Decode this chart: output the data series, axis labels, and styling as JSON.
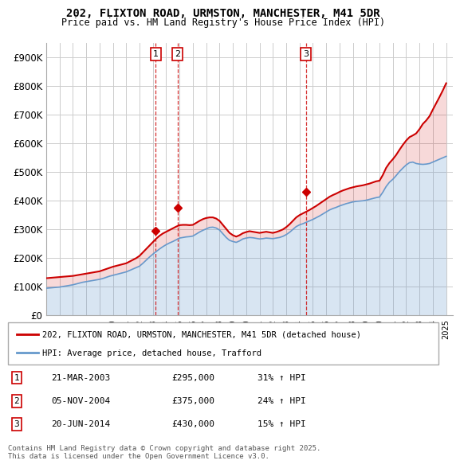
{
  "title1": "202, FLIXTON ROAD, URMSTON, MANCHESTER, M41 5DR",
  "title2": "Price paid vs. HM Land Registry's House Price Index (HPI)",
  "xlabel": "",
  "ylabel": "",
  "ylim": [
    0,
    950000
  ],
  "yticks": [
    0,
    100000,
    200000,
    300000,
    400000,
    500000,
    600000,
    700000,
    800000,
    900000
  ],
  "ytick_labels": [
    "£0",
    "£100K",
    "£200K",
    "£300K",
    "£400K",
    "£500K",
    "£600K",
    "£700K",
    "£800K",
    "£900K"
  ],
  "xlim_start": 1995.0,
  "xlim_end": 2025.5,
  "transactions": [
    {
      "num": 1,
      "date": "21-MAR-2003",
      "price": 295000,
      "year": 2003.22,
      "pct": "31%",
      "dir": "↑"
    },
    {
      "num": 2,
      "date": "05-NOV-2004",
      "price": 375000,
      "year": 2004.84,
      "pct": "24%",
      "dir": "↑"
    },
    {
      "num": 3,
      "date": "20-JUN-2014",
      "price": 430000,
      "year": 2014.47,
      "pct": "15%",
      "dir": "↑"
    }
  ],
  "line_color_red": "#cc0000",
  "line_color_blue": "#6699cc",
  "vline_color": "#cc0000",
  "background_color": "#ffffff",
  "grid_color": "#cccccc",
  "legend_label_red": "202, FLIXTON ROAD, URMSTON, MANCHESTER, M41 5DR (detached house)",
  "legend_label_blue": "HPI: Average price, detached house, Trafford",
  "footnote": "Contains HM Land Registry data © Crown copyright and database right 2025.\nThis data is licensed under the Open Government Licence v3.0.",
  "hpi_years": [
    1995,
    1995.25,
    1995.5,
    1995.75,
    1996,
    1996.25,
    1996.5,
    1996.75,
    1997,
    1997.25,
    1997.5,
    1997.75,
    1998,
    1998.25,
    1998.5,
    1998.75,
    1999,
    1999.25,
    1999.5,
    1999.75,
    2000,
    2000.25,
    2000.5,
    2000.75,
    2001,
    2001.25,
    2001.5,
    2001.75,
    2002,
    2002.25,
    2002.5,
    2002.75,
    2003,
    2003.25,
    2003.5,
    2003.75,
    2004,
    2004.25,
    2004.5,
    2004.75,
    2005,
    2005.25,
    2005.5,
    2005.75,
    2006,
    2006.25,
    2006.5,
    2006.75,
    2007,
    2007.25,
    2007.5,
    2007.75,
    2008,
    2008.25,
    2008.5,
    2008.75,
    2009,
    2009.25,
    2009.5,
    2009.75,
    2010,
    2010.25,
    2010.5,
    2010.75,
    2011,
    2011.25,
    2011.5,
    2011.75,
    2012,
    2012.25,
    2012.5,
    2012.75,
    2013,
    2013.25,
    2013.5,
    2013.75,
    2014,
    2014.25,
    2014.5,
    2014.75,
    2015,
    2015.25,
    2015.5,
    2015.75,
    2016,
    2016.25,
    2016.5,
    2016.75,
    2017,
    2017.25,
    2017.5,
    2017.75,
    2018,
    2018.25,
    2018.5,
    2018.75,
    2019,
    2019.25,
    2019.5,
    2019.75,
    2020,
    2020.25,
    2020.5,
    2020.75,
    2021,
    2021.25,
    2021.5,
    2021.75,
    2022,
    2022.25,
    2022.5,
    2022.75,
    2023,
    2023.25,
    2023.5,
    2023.75,
    2024,
    2024.25,
    2024.5,
    2024.75,
    2025
  ],
  "hpi_values": [
    95000,
    96000,
    97000,
    98000,
    99000,
    101000,
    103000,
    105000,
    107000,
    110000,
    113000,
    116000,
    118000,
    120000,
    122000,
    124000,
    126000,
    129000,
    133000,
    137000,
    140000,
    143000,
    146000,
    149000,
    152000,
    157000,
    162000,
    167000,
    172000,
    182000,
    193000,
    204000,
    214000,
    223000,
    232000,
    240000,
    247000,
    253000,
    258000,
    264000,
    270000,
    272000,
    274000,
    275000,
    277000,
    284000,
    291000,
    297000,
    302000,
    307000,
    308000,
    305000,
    298000,
    285000,
    272000,
    262000,
    258000,
    255000,
    260000,
    267000,
    270000,
    272000,
    271000,
    269000,
    267000,
    268000,
    270000,
    269000,
    268000,
    270000,
    272000,
    276000,
    282000,
    290000,
    300000,
    310000,
    316000,
    320000,
    325000,
    330000,
    335000,
    341000,
    347000,
    354000,
    361000,
    368000,
    373000,
    377000,
    382000,
    386000,
    390000,
    393000,
    396000,
    398000,
    399000,
    400000,
    402000,
    405000,
    408000,
    411000,
    413000,
    430000,
    450000,
    465000,
    475000,
    488000,
    502000,
    514000,
    525000,
    533000,
    535000,
    530000,
    528000,
    527000,
    528000,
    530000,
    535000,
    540000,
    545000,
    550000,
    555000
  ],
  "red_years": [
    1995,
    1995.25,
    1995.5,
    1995.75,
    1996,
    1996.25,
    1996.5,
    1996.75,
    1997,
    1997.25,
    1997.5,
    1997.75,
    1998,
    1998.25,
    1998.5,
    1998.75,
    1999,
    1999.25,
    1999.5,
    1999.75,
    2000,
    2000.25,
    2000.5,
    2000.75,
    2001,
    2001.25,
    2001.5,
    2001.75,
    2002,
    2002.25,
    2002.5,
    2002.75,
    2003,
    2003.25,
    2003.5,
    2003.75,
    2004,
    2004.25,
    2004.5,
    2004.75,
    2005,
    2005.25,
    2005.5,
    2005.75,
    2006,
    2006.25,
    2006.5,
    2006.75,
    2007,
    2007.25,
    2007.5,
    2007.75,
    2008,
    2008.25,
    2008.5,
    2008.75,
    2009,
    2009.25,
    2009.5,
    2009.75,
    2010,
    2010.25,
    2010.5,
    2010.75,
    2011,
    2011.25,
    2011.5,
    2011.75,
    2012,
    2012.25,
    2012.5,
    2012.75,
    2013,
    2013.25,
    2013.5,
    2013.75,
    2014,
    2014.25,
    2014.5,
    2014.75,
    2015,
    2015.25,
    2015.5,
    2015.75,
    2016,
    2016.25,
    2016.5,
    2016.75,
    2017,
    2017.25,
    2017.5,
    2017.75,
    2018,
    2018.25,
    2018.5,
    2018.75,
    2019,
    2019.25,
    2019.5,
    2019.75,
    2020,
    2020.25,
    2020.5,
    2020.75,
    2021,
    2021.25,
    2021.5,
    2021.75,
    2022,
    2022.25,
    2022.5,
    2022.75,
    2023,
    2023.25,
    2023.5,
    2023.75,
    2024,
    2024.25,
    2024.5,
    2024.75,
    2025
  ],
  "red_values": [
    130000,
    131000,
    132000,
    133000,
    134000,
    135000,
    136000,
    137000,
    138000,
    140000,
    142000,
    144000,
    146000,
    148000,
    150000,
    152000,
    154000,
    158000,
    162000,
    166000,
    170000,
    173000,
    176000,
    179000,
    182000,
    188000,
    194000,
    200000,
    208000,
    220000,
    232000,
    244000,
    256000,
    268000,
    278000,
    286000,
    292000,
    298000,
    304000,
    310000,
    315000,
    316000,
    316000,
    315000,
    316000,
    323000,
    330000,
    336000,
    340000,
    342000,
    342000,
    338000,
    330000,
    316000,
    302000,
    288000,
    280000,
    275000,
    280000,
    287000,
    291000,
    294000,
    292000,
    290000,
    288000,
    290000,
    292000,
    290000,
    288000,
    291000,
    295000,
    300000,
    308000,
    318000,
    330000,
    342000,
    350000,
    356000,
    362000,
    368000,
    375000,
    382000,
    390000,
    398000,
    406000,
    414000,
    420000,
    425000,
    431000,
    436000,
    440000,
    444000,
    447000,
    450000,
    452000,
    454000,
    457000,
    460000,
    464000,
    468000,
    470000,
    490000,
    515000,
    532000,
    545000,
    560000,
    578000,
    595000,
    610000,
    622000,
    628000,
    635000,
    650000,
    668000,
    680000,
    695000,
    718000,
    740000,
    762000,
    785000,
    810000
  ]
}
